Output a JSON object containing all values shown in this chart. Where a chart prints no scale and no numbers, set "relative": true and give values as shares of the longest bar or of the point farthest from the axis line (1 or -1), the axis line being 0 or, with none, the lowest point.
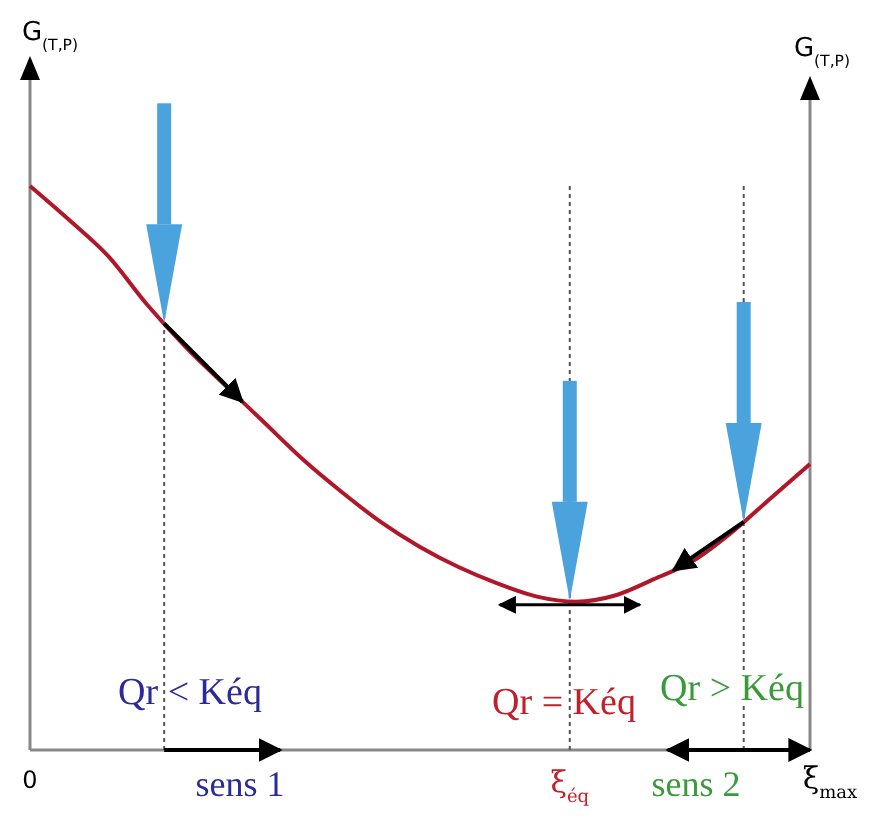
{
  "chart_data": {
    "type": "line",
    "relative": true,
    "categories": [
      null,
      null,
      null,
      null,
      null,
      null,
      null,
      null,
      null,
      null,
      null,
      null,
      null,
      null,
      null,
      null,
      null,
      null,
      null,
      null,
      null
    ],
    "series": [
      {
        "color": "#b0182a",
        "values": [
          1,
          0.94,
          0.876,
          0.79,
          0.714,
          0.647,
          0.581,
          0.515,
          0.457,
          0.404,
          0.36,
          0.324,
          0.295,
          0.272,
          0.263,
          0.274,
          0.303,
          0.335,
          0.386,
          0.447,
          0.507
        ]
      }
    ],
    "annotations": [
      "Qr < Kéq",
      "Qr = Kéq",
      "Qr > Kéq",
      "sens 1",
      "sens 2",
      "0",
      "ξ$_{éq}$",
      "ξ$_{max}$",
      "G$_{(T,P)}$",
      "G$_{(T,P)}$"
    ],
    "marker": "none",
    "line_style": "solid"
  }
}
